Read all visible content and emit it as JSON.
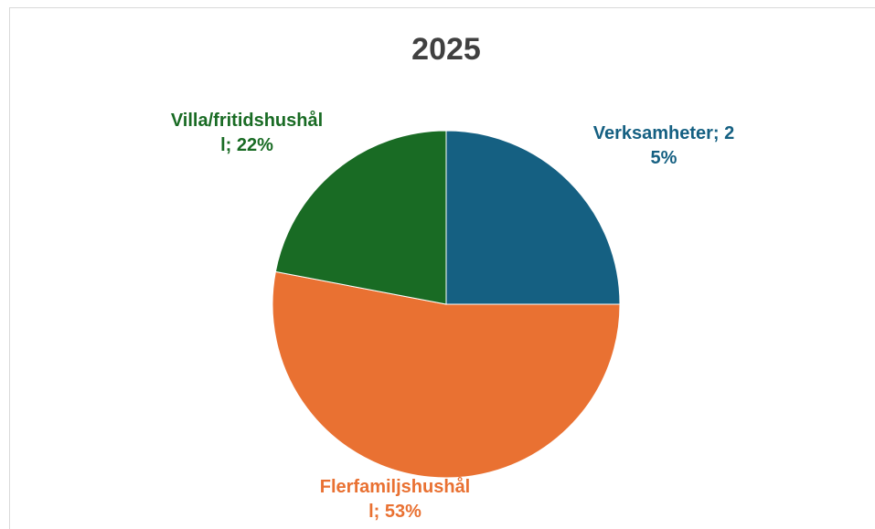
{
  "chart_data": {
    "type": "pie",
    "title": "2025",
    "values": [
      25,
      53,
      22
    ],
    "value_labels": [
      "Verksamheter; 25%",
      "Flerfamiljshushåll; 53%",
      "Villa/fritidshushåll; 22%"
    ],
    "colors": [
      "#156082",
      "#E97132",
      "#196B24"
    ]
  }
}
